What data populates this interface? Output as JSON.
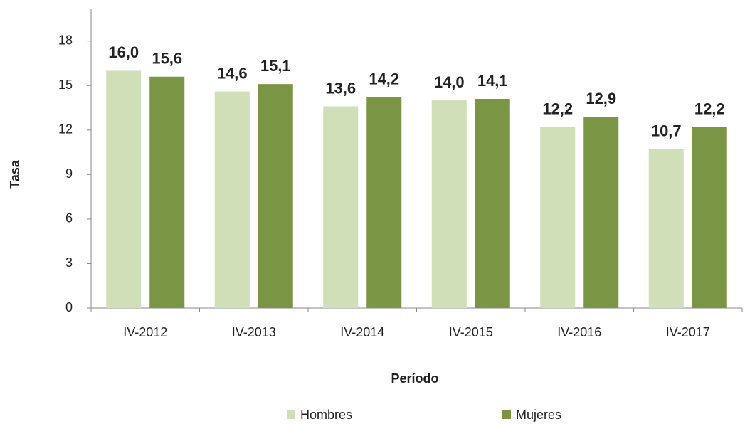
{
  "chart_data": {
    "type": "bar",
    "x_label": "Período",
    "y_label": "Tasa",
    "categories": [
      "IV-2012",
      "IV-2013",
      "IV-2014",
      "IV-2015",
      "IV-2016",
      "IV-2017"
    ],
    "series": [
      {
        "name": "Hombres",
        "color": "#d0dfb8",
        "values": [
          16.0,
          14.6,
          13.6,
          14.0,
          12.2,
          10.7
        ],
        "value_labels": [
          "16,0",
          "14,6",
          "13,6",
          "14,0",
          "12,2",
          "10,7"
        ]
      },
      {
        "name": "Mujeres",
        "color": "#7a9544",
        "values": [
          15.6,
          15.1,
          14.2,
          14.1,
          12.9,
          12.2
        ],
        "value_labels": [
          "15,6",
          "15,1",
          "14,2",
          "14,1",
          "12,9",
          "12,2"
        ]
      }
    ],
    "value_label_color": "#77933c",
    "ylim": [
      0,
      20
    ],
    "yticks": [
      0,
      3,
      6,
      9,
      12,
      15,
      18
    ],
    "grid": false,
    "legend": "bottom"
  }
}
